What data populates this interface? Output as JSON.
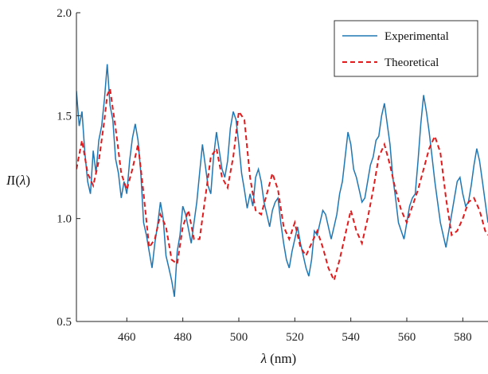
{
  "chart_data": {
    "type": "line",
    "xlabel_symbol": "λ",
    "xlabel_unit": "(nm)",
    "ylabel_prefix": "I(",
    "ylabel_symbol": "λ",
    "ylabel_suffix": ")",
    "xlim": [
      442,
      589
    ],
    "ylim": [
      0.5,
      2.0
    ],
    "xticks": [
      460,
      480,
      500,
      520,
      540,
      560,
      580
    ],
    "yticks": [
      "0.5",
      "1.0",
      "1.5",
      "2.0"
    ],
    "grid": false,
    "legend_position": "top-right",
    "series": [
      {
        "name": "Experimental",
        "color": "#1f77b4",
        "style": "solid",
        "x": [
          442,
          443,
          444,
          445,
          446,
          447,
          448,
          449,
          450,
          451,
          452,
          453,
          454,
          455,
          456,
          457,
          458,
          459,
          460,
          461,
          462,
          463,
          464,
          465,
          466,
          467,
          468,
          469,
          470,
          471,
          472,
          473,
          474,
          475,
          476,
          477,
          478,
          479,
          480,
          481,
          482,
          483,
          484,
          485,
          486,
          487,
          488,
          489,
          490,
          491,
          492,
          493,
          494,
          495,
          496,
          497,
          498,
          499,
          500,
          501,
          502,
          503,
          504,
          505,
          506,
          507,
          508,
          509,
          510,
          511,
          512,
          513,
          514,
          515,
          516,
          517,
          518,
          519,
          520,
          521,
          522,
          523,
          524,
          525,
          526,
          527,
          528,
          529,
          530,
          531,
          532,
          533,
          534,
          535,
          536,
          537,
          538,
          539,
          540,
          541,
          542,
          543,
          544,
          545,
          546,
          547,
          548,
          549,
          550,
          551,
          552,
          553,
          554,
          555,
          556,
          557,
          558,
          559,
          560,
          561,
          562,
          563,
          564,
          565,
          566,
          567,
          568,
          569,
          570,
          571,
          572,
          573,
          574,
          575,
          576,
          577,
          578,
          579,
          580,
          581,
          582,
          583,
          584,
          585,
          586,
          587,
          588,
          589
        ],
        "y": [
          1.62,
          1.45,
          1.52,
          1.32,
          1.18,
          1.12,
          1.33,
          1.22,
          1.38,
          1.45,
          1.58,
          1.75,
          1.55,
          1.48,
          1.29,
          1.22,
          1.1,
          1.18,
          1.12,
          1.28,
          1.39,
          1.46,
          1.38,
          1.22,
          0.98,
          0.92,
          0.84,
          0.76,
          0.88,
          0.97,
          1.08,
          1.0,
          0.82,
          0.76,
          0.7,
          0.62,
          0.84,
          0.92,
          1.06,
          1.02,
          0.95,
          0.88,
          0.98,
          1.08,
          1.22,
          1.36,
          1.26,
          1.16,
          1.12,
          1.3,
          1.42,
          1.33,
          1.24,
          1.2,
          1.28,
          1.44,
          1.52,
          1.48,
          1.36,
          1.22,
          1.14,
          1.05,
          1.12,
          1.06,
          1.2,
          1.24,
          1.18,
          1.08,
          1.02,
          0.96,
          1.04,
          1.08,
          1.1,
          0.98,
          0.88,
          0.8,
          0.76,
          0.84,
          0.9,
          0.96,
          0.88,
          0.82,
          0.76,
          0.72,
          0.8,
          0.94,
          0.92,
          0.98,
          1.04,
          1.02,
          0.96,
          0.9,
          0.96,
          1.02,
          1.12,
          1.18,
          1.3,
          1.42,
          1.36,
          1.24,
          1.2,
          1.14,
          1.08,
          1.1,
          1.18,
          1.26,
          1.3,
          1.38,
          1.4,
          1.5,
          1.56,
          1.46,
          1.36,
          1.2,
          1.1,
          0.98,
          0.94,
          0.9,
          0.98,
          1.06,
          1.1,
          1.12,
          1.28,
          1.46,
          1.6,
          1.52,
          1.42,
          1.3,
          1.18,
          1.08,
          0.98,
          0.92,
          0.86,
          0.94,
          1.02,
          1.1,
          1.18,
          1.2,
          1.12,
          1.06,
          1.08,
          1.16,
          1.26,
          1.34,
          1.28,
          1.18,
          1.08,
          0.98
        ]
      },
      {
        "name": "Theoretical",
        "color": "#e31a1c",
        "style": "dashed",
        "x": [
          442,
          444,
          446,
          448,
          450,
          452,
          453,
          454,
          456,
          458,
          460,
          462,
          464,
          466,
          468,
          470,
          472,
          474,
          476,
          478,
          480,
          482,
          484,
          486,
          488,
          490,
          492,
          494,
          496,
          498,
          500,
          502,
          504,
          506,
          508,
          510,
          512,
          514,
          516,
          518,
          520,
          522,
          524,
          526,
          528,
          530,
          532,
          534,
          536,
          538,
          540,
          542,
          544,
          546,
          548,
          550,
          552,
          554,
          556,
          558,
          560,
          562,
          564,
          566,
          568,
          570,
          572,
          574,
          576,
          578,
          580,
          582,
          584,
          586,
          588,
          589
        ],
        "y": [
          1.24,
          1.38,
          1.22,
          1.16,
          1.28,
          1.48,
          1.6,
          1.63,
          1.44,
          1.22,
          1.14,
          1.24,
          1.36,
          1.12,
          0.86,
          0.9,
          1.02,
          0.96,
          0.8,
          0.78,
          0.96,
          1.04,
          0.9,
          0.9,
          1.1,
          1.3,
          1.34,
          1.2,
          1.15,
          1.3,
          1.52,
          1.48,
          1.2,
          1.04,
          1.02,
          1.12,
          1.22,
          1.14,
          0.96,
          0.9,
          0.98,
          0.86,
          0.82,
          0.88,
          0.94,
          0.86,
          0.76,
          0.7,
          0.8,
          0.92,
          1.04,
          0.94,
          0.88,
          1.0,
          1.14,
          1.3,
          1.36,
          1.26,
          1.14,
          1.04,
          0.98,
          1.06,
          1.14,
          1.24,
          1.34,
          1.4,
          1.32,
          1.1,
          0.92,
          0.94,
          1.0,
          1.08,
          1.1,
          1.04,
          0.94,
          0.92
        ]
      }
    ]
  }
}
